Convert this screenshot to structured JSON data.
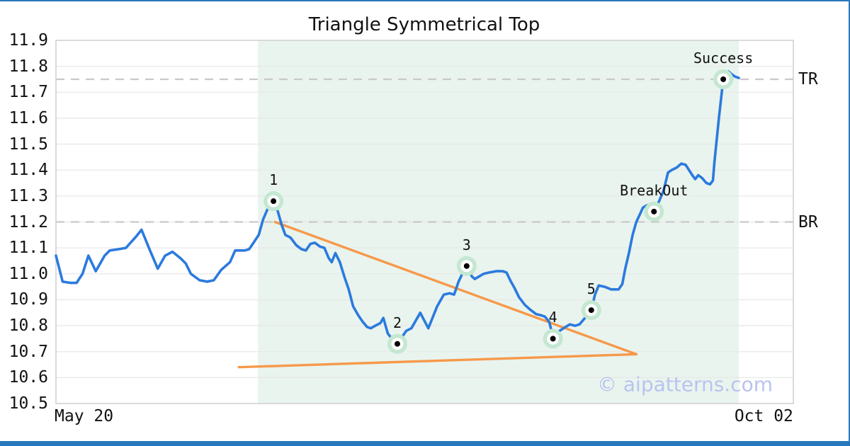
{
  "title": "Triangle Symmetrical Top",
  "watermark": "© aipatterns.com",
  "colors": {
    "price_line": "#2b7ade",
    "trendline": "#f6994a",
    "shade": "#e9f4ee",
    "grid": "#e8e8e8",
    "spine": "#cfcfcf",
    "dashed_level": "#c9c9c9",
    "marker_halo": "#c4e7d1",
    "marker_dot": "#000000",
    "watermark_color": "#b9c3f0",
    "frame_bar": "#2878be",
    "text": "#111111"
  },
  "y_axis": {
    "min": 10.5,
    "max": 11.9,
    "step": 0.1
  },
  "x_axis": {
    "ticks": [
      {
        "label": "May 20",
        "frac": 0.038
      },
      {
        "label": "Oct 02",
        "frac": 0.96
      }
    ]
  },
  "chart_data": {
    "type": "line",
    "title": "Triangle Symmetrical Top",
    "xlabel": "",
    "ylabel": "",
    "x_range_labels": [
      "May 20",
      "Oct 02"
    ],
    "ylim": [
      10.5,
      11.9
    ],
    "y_tick_step": 0.1,
    "grid": true,
    "legend": "none",
    "levels": [
      {
        "label": "TR",
        "value": 11.75
      },
      {
        "label": "BR",
        "value": 11.2
      }
    ],
    "shaded_region": {
      "x_from": 0.274,
      "x_to": 0.926
    },
    "trendlines": [
      {
        "name": "upper",
        "from": [
          0.297,
          11.2
        ],
        "to": [
          0.787,
          10.69
        ]
      },
      {
        "name": "lower",
        "from": [
          0.248,
          10.64
        ],
        "to": [
          0.787,
          10.69
        ]
      }
    ],
    "markers": [
      {
        "label": "1",
        "x": 0.295,
        "value": 11.28
      },
      {
        "label": "2",
        "x": 0.463,
        "value": 10.73
      },
      {
        "label": "3",
        "x": 0.557,
        "value": 11.03
      },
      {
        "label": "4",
        "x": 0.674,
        "value": 10.75
      },
      {
        "label": "5",
        "x": 0.726,
        "value": 10.86
      },
      {
        "label": "BreakOut",
        "x": 0.811,
        "value": 11.24
      },
      {
        "label": "Success",
        "x": 0.905,
        "value": 11.75
      }
    ],
    "series": [
      {
        "name": "price",
        "points": [
          [
            0.0,
            11.07
          ],
          [
            0.009,
            10.97
          ],
          [
            0.02,
            10.965
          ],
          [
            0.028,
            10.965
          ],
          [
            0.036,
            11.0
          ],
          [
            0.044,
            11.07
          ],
          [
            0.054,
            11.01
          ],
          [
            0.066,
            11.07
          ],
          [
            0.073,
            11.09
          ],
          [
            0.085,
            11.095
          ],
          [
            0.095,
            11.1
          ],
          [
            0.109,
            11.145
          ],
          [
            0.116,
            11.17
          ],
          [
            0.126,
            11.1
          ],
          [
            0.138,
            11.02
          ],
          [
            0.148,
            11.07
          ],
          [
            0.158,
            11.085
          ],
          [
            0.169,
            11.06
          ],
          [
            0.176,
            11.04
          ],
          [
            0.183,
            11.0
          ],
          [
            0.195,
            10.975
          ],
          [
            0.205,
            10.97
          ],
          [
            0.214,
            10.975
          ],
          [
            0.224,
            11.015
          ],
          [
            0.23,
            11.03
          ],
          [
            0.236,
            11.045
          ],
          [
            0.243,
            11.09
          ],
          [
            0.256,
            11.09
          ],
          [
            0.262,
            11.095
          ],
          [
            0.268,
            11.12
          ],
          [
            0.275,
            11.15
          ],
          [
            0.281,
            11.21
          ],
          [
            0.287,
            11.25
          ],
          [
            0.295,
            11.28
          ],
          [
            0.301,
            11.24
          ],
          [
            0.306,
            11.19
          ],
          [
            0.311,
            11.15
          ],
          [
            0.318,
            11.14
          ],
          [
            0.326,
            11.11
          ],
          [
            0.333,
            11.095
          ],
          [
            0.339,
            11.09
          ],
          [
            0.345,
            11.115
          ],
          [
            0.351,
            11.12
          ],
          [
            0.358,
            11.105
          ],
          [
            0.364,
            11.1
          ],
          [
            0.37,
            11.06
          ],
          [
            0.374,
            11.045
          ],
          [
            0.379,
            11.08
          ],
          [
            0.385,
            11.045
          ],
          [
            0.391,
            10.99
          ],
          [
            0.397,
            10.94
          ],
          [
            0.403,
            10.875
          ],
          [
            0.41,
            10.84
          ],
          [
            0.416,
            10.815
          ],
          [
            0.422,
            10.795
          ],
          [
            0.427,
            10.79
          ],
          [
            0.433,
            10.8
          ],
          [
            0.44,
            10.81
          ],
          [
            0.444,
            10.83
          ],
          [
            0.45,
            10.77
          ],
          [
            0.457,
            10.745
          ],
          [
            0.463,
            10.73
          ],
          [
            0.475,
            10.78
          ],
          [
            0.482,
            10.79
          ],
          [
            0.494,
            10.85
          ],
          [
            0.505,
            10.79
          ],
          [
            0.517,
            10.875
          ],
          [
            0.526,
            10.92
          ],
          [
            0.534,
            10.925
          ],
          [
            0.54,
            10.92
          ],
          [
            0.546,
            10.97
          ],
          [
            0.551,
            11.0
          ],
          [
            0.557,
            11.03
          ],
          [
            0.564,
            10.99
          ],
          [
            0.568,
            10.98
          ],
          [
            0.574,
            10.99
          ],
          [
            0.58,
            11.0
          ],
          [
            0.587,
            11.005
          ],
          [
            0.597,
            11.01
          ],
          [
            0.606,
            11.01
          ],
          [
            0.611,
            11.005
          ],
          [
            0.617,
            10.97
          ],
          [
            0.621,
            10.95
          ],
          [
            0.628,
            10.91
          ],
          [
            0.636,
            10.88
          ],
          [
            0.644,
            10.86
          ],
          [
            0.651,
            10.845
          ],
          [
            0.658,
            10.84
          ],
          [
            0.663,
            10.835
          ],
          [
            0.669,
            10.815
          ],
          [
            0.672,
            10.78
          ],
          [
            0.674,
            10.75
          ],
          [
            0.683,
            10.78
          ],
          [
            0.691,
            10.795
          ],
          [
            0.697,
            10.805
          ],
          [
            0.704,
            10.8
          ],
          [
            0.71,
            10.805
          ],
          [
            0.719,
            10.835
          ],
          [
            0.726,
            10.86
          ],
          [
            0.731,
            10.92
          ],
          [
            0.736,
            10.955
          ],
          [
            0.744,
            10.95
          ],
          [
            0.753,
            10.94
          ],
          [
            0.763,
            10.94
          ],
          [
            0.768,
            10.96
          ],
          [
            0.772,
            11.02
          ],
          [
            0.777,
            11.08
          ],
          [
            0.782,
            11.15
          ],
          [
            0.787,
            11.2
          ],
          [
            0.792,
            11.23
          ],
          [
            0.796,
            11.255
          ],
          [
            0.802,
            11.265
          ],
          [
            0.806,
            11.26
          ],
          [
            0.811,
            11.24
          ],
          [
            0.818,
            11.28
          ],
          [
            0.824,
            11.32
          ],
          [
            0.83,
            11.39
          ],
          [
            0.835,
            11.4
          ],
          [
            0.842,
            11.41
          ],
          [
            0.848,
            11.425
          ],
          [
            0.854,
            11.42
          ],
          [
            0.863,
            11.38
          ],
          [
            0.867,
            11.365
          ],
          [
            0.871,
            11.38
          ],
          [
            0.876,
            11.37
          ],
          [
            0.882,
            11.35
          ],
          [
            0.887,
            11.345
          ],
          [
            0.891,
            11.36
          ],
          [
            0.893,
            11.43
          ],
          [
            0.899,
            11.6
          ],
          [
            0.903,
            11.7
          ],
          [
            0.905,
            11.75
          ],
          [
            0.912,
            11.78
          ],
          [
            0.916,
            11.77
          ],
          [
            0.921,
            11.76
          ],
          [
            0.926,
            11.755
          ]
        ]
      }
    ]
  }
}
